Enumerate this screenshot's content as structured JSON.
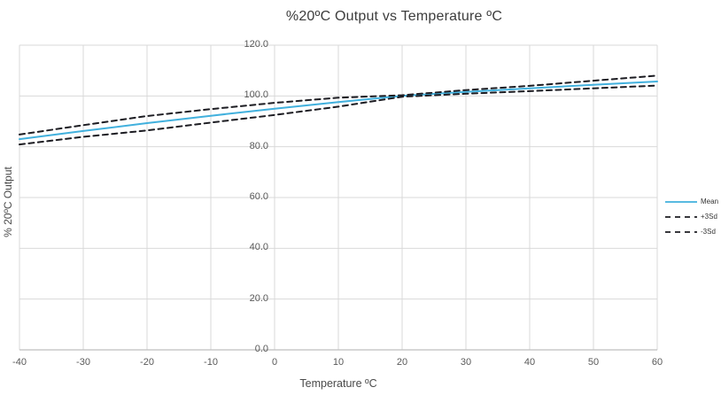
{
  "title": "%20ºC Output vs Temperature ºC",
  "chart_data": {
    "type": "line",
    "title": "%20ºC Output vs Temperature ºC",
    "xlabel": "Temperature ºC",
    "ylabel": "% 20ºC Output",
    "xlim": [
      -40,
      60
    ],
    "ylim": [
      0,
      120
    ],
    "x_ticks": [
      -40,
      -30,
      -20,
      -10,
      0,
      10,
      20,
      30,
      40,
      50,
      60
    ],
    "y_ticks": [
      0,
      20,
      40,
      60,
      80,
      100,
      120
    ],
    "y_tick_labels": [
      "0.0",
      "20.0",
      "40.0",
      "60.0",
      "80.0",
      "100.0",
      "120.0"
    ],
    "grid": true,
    "legend_position": "right",
    "x": [
      -40,
      -30,
      -20,
      -10,
      0,
      10,
      20,
      30,
      40,
      50,
      60
    ],
    "series": [
      {
        "name": "Mean",
        "color": "#41b0dd",
        "dash": "solid",
        "values": [
          83.0,
          86.2,
          89.3,
          92.2,
          95.0,
          97.6,
          100.0,
          101.6,
          103.0,
          104.4,
          105.7
        ]
      },
      {
        "name": "+3Sd",
        "color": "#1c1c22",
        "dash": "dashed",
        "values": [
          84.8,
          88.5,
          92.1,
          94.8,
          97.3,
          99.3,
          100.3,
          102.3,
          104.0,
          106.0,
          108.0
        ]
      },
      {
        "name": "-3Sd",
        "color": "#1c1c22",
        "dash": "dashed",
        "values": [
          80.9,
          83.9,
          86.4,
          89.5,
          92.5,
          95.8,
          99.7,
          100.9,
          101.9,
          103.0,
          104.1
        ]
      }
    ],
    "colors": {
      "gridline": "#d9d9d9",
      "axis_line": "#bfbfbf",
      "tick_label": "#595959",
      "title": "#3d3d3d",
      "background": "#ffffff"
    }
  }
}
